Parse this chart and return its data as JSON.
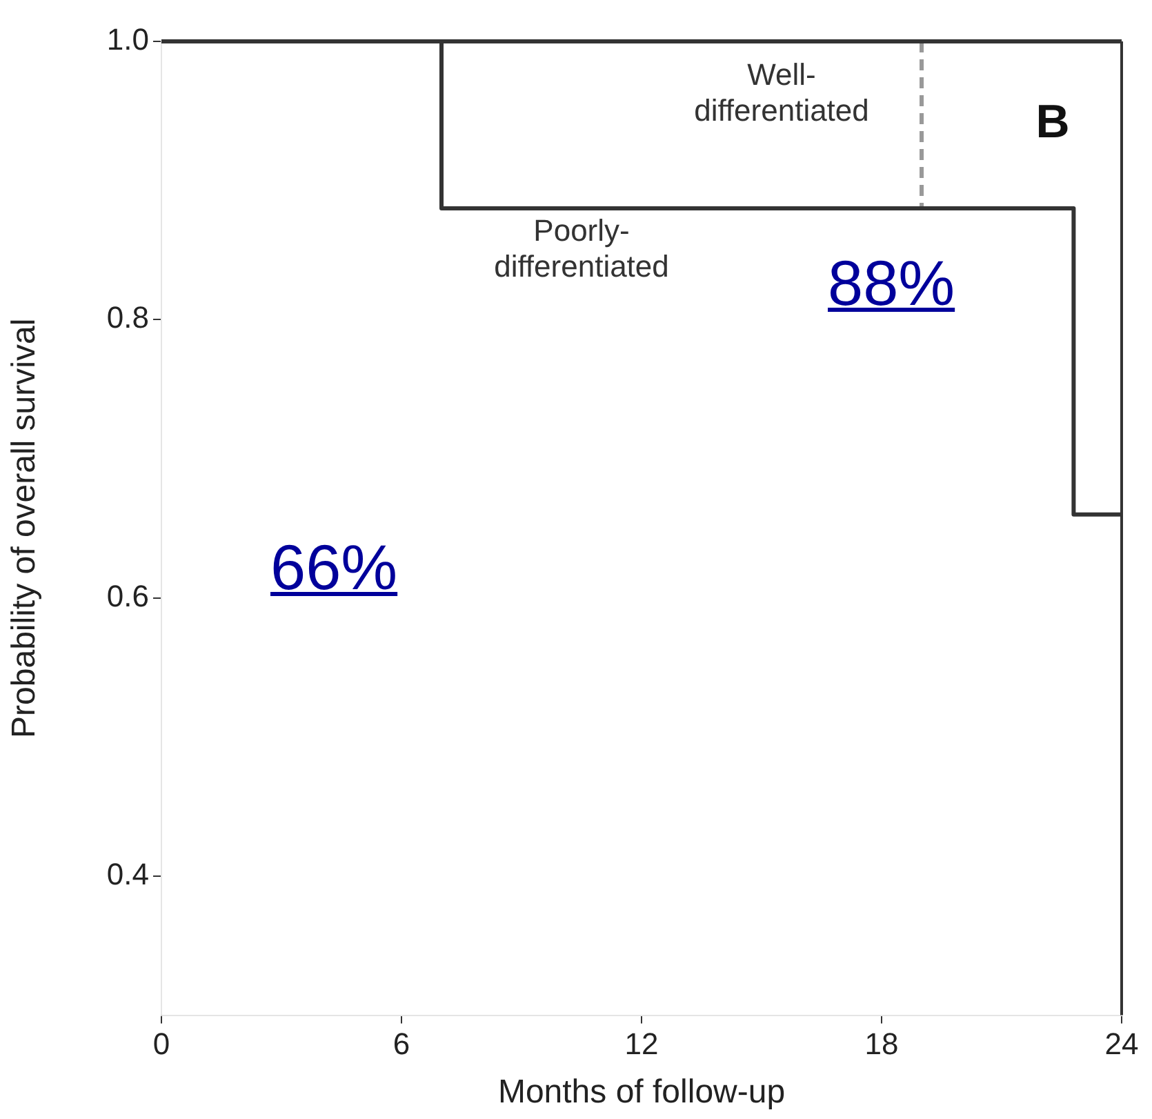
{
  "chart_data": {
    "type": "step",
    "xlabel": "Months of follow-up",
    "ylabel": "Probability of overall survival",
    "xlim": [
      0,
      24
    ],
    "xticks": [
      0,
      6,
      12,
      18,
      24
    ],
    "ylim": [
      0.3,
      1.0
    ],
    "yticks": [
      {
        "value": 0.4,
        "label": "0.4"
      },
      {
        "value": 0.6,
        "label": "0.6"
      },
      {
        "value": 0.8,
        "label": "0.8"
      },
      {
        "value": 1.0,
        "label": "1.0"
      }
    ],
    "grid": false,
    "legend": false,
    "marker": "none",
    "series": [
      {
        "name": "Well-differentiated",
        "color": "#333333",
        "x": [
          0,
          24
        ],
        "values": [
          1.0,
          1.0
        ]
      },
      {
        "name": "Poorly-differentiated",
        "color": "#333333",
        "x": [
          0,
          7,
          22.8,
          24
        ],
        "values": [
          1.0,
          0.88,
          0.66,
          0.66
        ]
      },
      {
        "type": "line",
        "color": "#999999",
        "line_style": "dashed",
        "x": [
          19,
          19
        ],
        "values": [
          1.0,
          0.88
        ]
      }
    ],
    "annotations": [
      "B",
      "88%",
      "66%"
    ]
  }
}
